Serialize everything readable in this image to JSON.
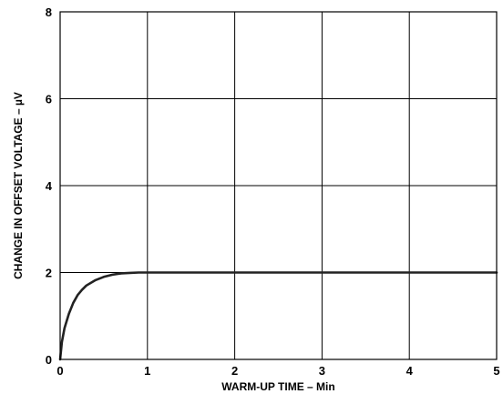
{
  "chart_data": {
    "type": "line",
    "title": "",
    "xlabel": "WARM-UP TIME – Min",
    "ylabel": "CHANGE IN OFFSET VOLTAGE – µV",
    "xlim": [
      0,
      5
    ],
    "ylim": [
      0,
      8
    ],
    "x_ticks": [
      0,
      1,
      2,
      3,
      4,
      5
    ],
    "y_ticks": [
      0,
      2,
      4,
      6,
      8
    ],
    "x_tick_labels": [
      "0",
      "1",
      "2",
      "3",
      "4",
      "5"
    ],
    "y_tick_labels": [
      "0",
      "2",
      "4",
      "6",
      "8"
    ],
    "grid": true,
    "legend": "none",
    "line_color": "#222222",
    "grid_color": "#000000",
    "series": [
      {
        "x": [
          0,
          0.02,
          0.05,
          0.1,
          0.15,
          0.2,
          0.25,
          0.3,
          0.4,
          0.5,
          0.6,
          0.7,
          0.8,
          0.9,
          1.0,
          1.5,
          2.0,
          3.0,
          4.0,
          5.0
        ],
        "y": [
          0,
          0.4,
          0.72,
          1.05,
          1.3,
          1.48,
          1.6,
          1.7,
          1.82,
          1.9,
          1.95,
          1.98,
          1.99,
          2.0,
          2.0,
          2.0,
          2.0,
          2.0,
          2.0,
          2.0
        ]
      }
    ]
  }
}
